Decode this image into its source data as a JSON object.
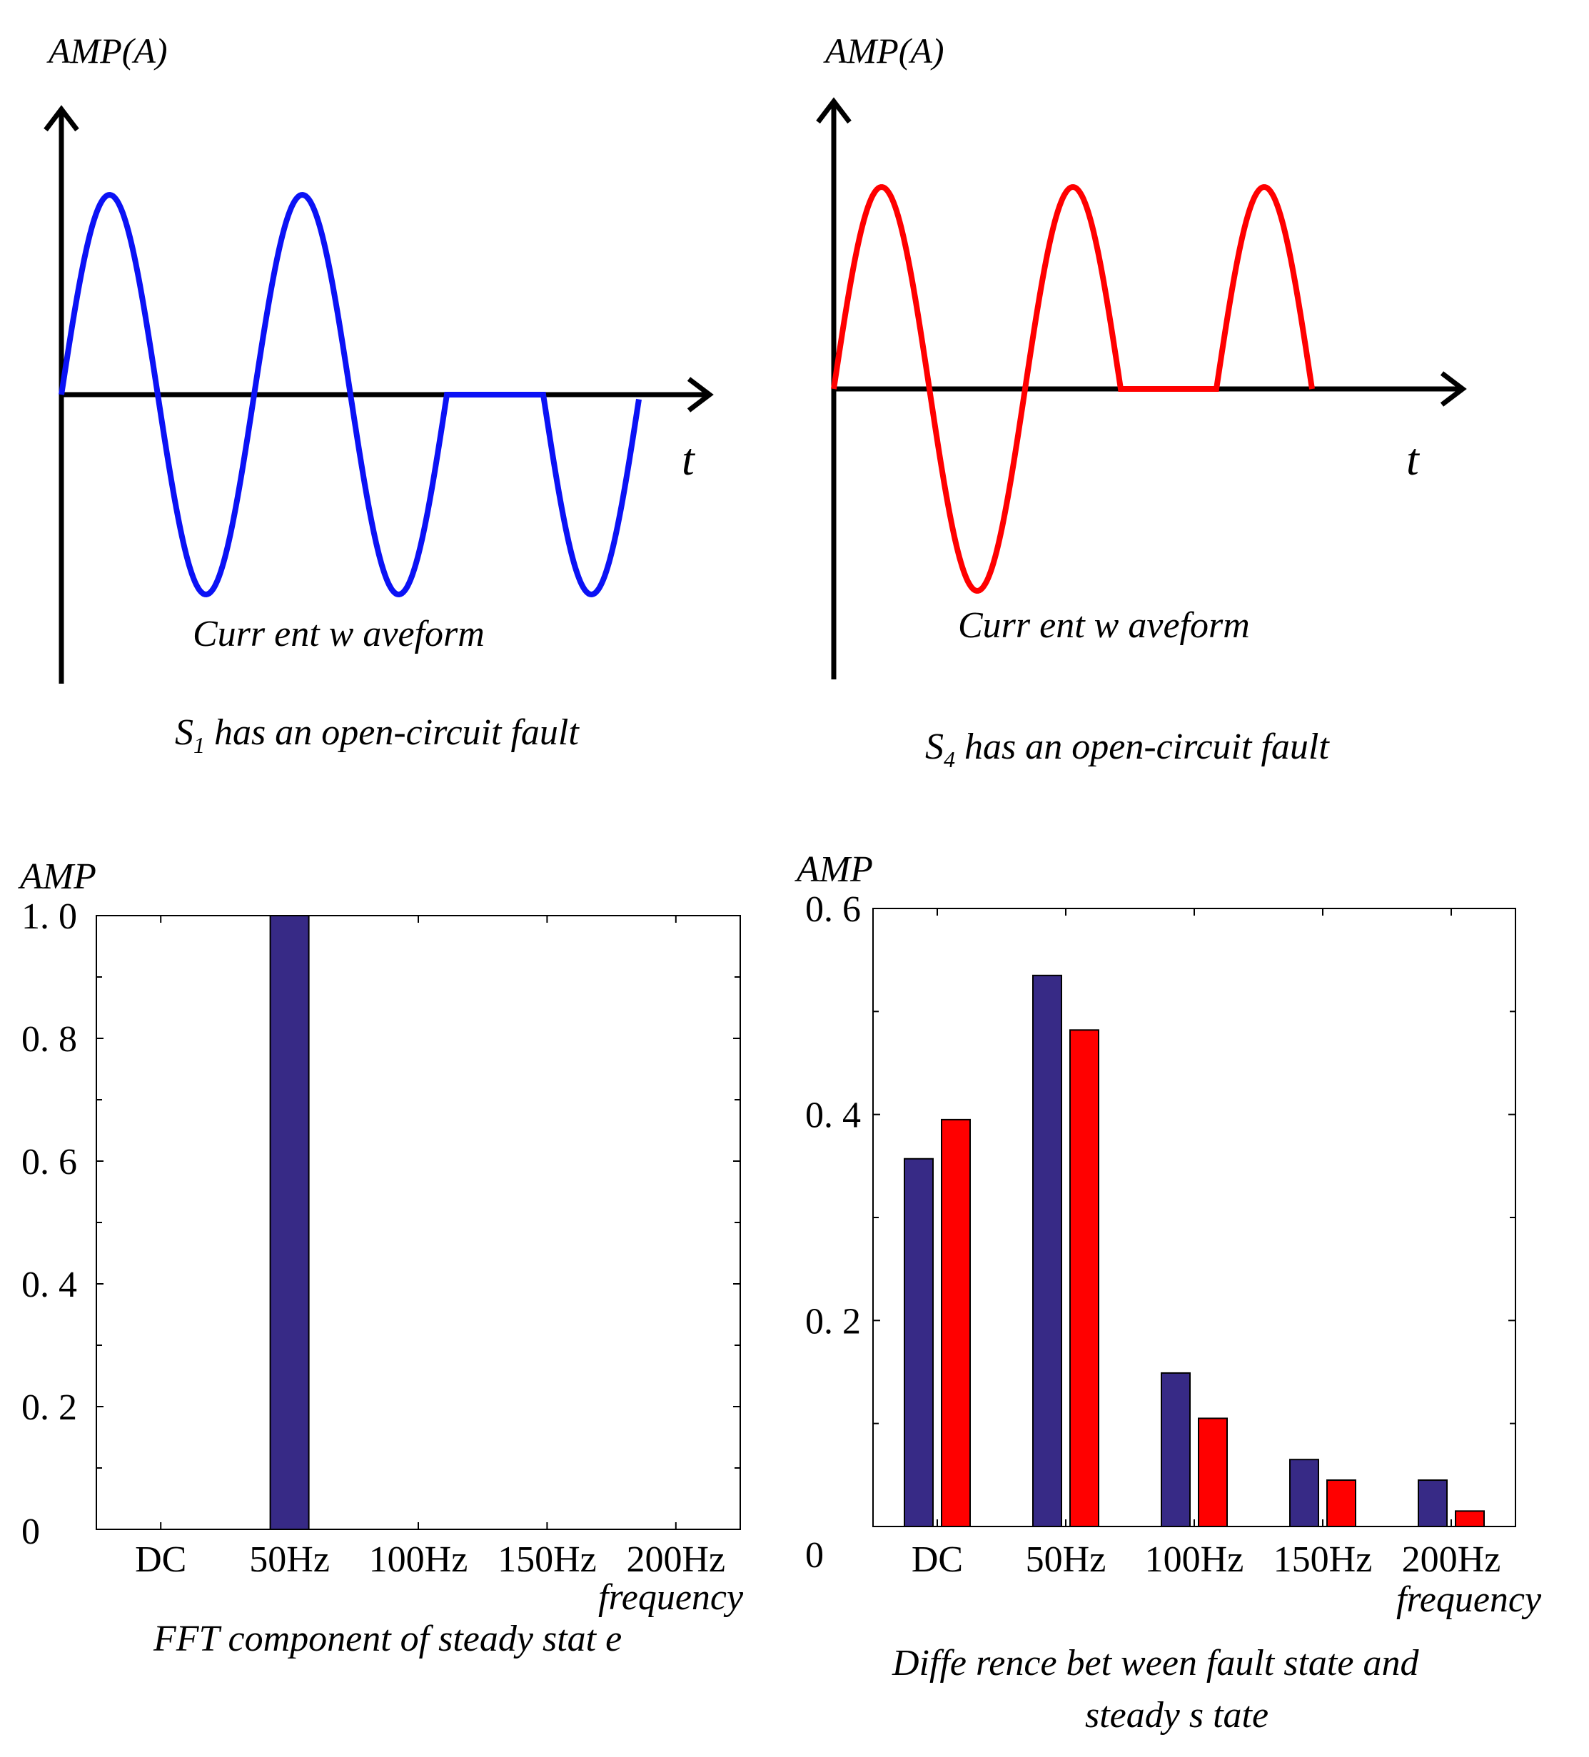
{
  "colors": {
    "blue_wave": "#0b12f5",
    "red_wave": "#ff0000",
    "bar_navy": "#372a86",
    "bar_red": "#ff0000",
    "axis": "#000000"
  },
  "panels": {
    "s1": {
      "y_axis_label": "AMP(A)",
      "t_label": "t",
      "wave_label": "Curr ent w aveform",
      "caption_prefix": "S",
      "caption_sub": "1",
      "caption_rest": " has an open-circuit fault"
    },
    "s4": {
      "y_axis_label": "AMP(A)",
      "t_label": "t",
      "wave_label": "Curr ent w aveform",
      "caption_prefix": "S",
      "caption_sub": "4",
      "caption_rest": " has an open-circuit fault"
    },
    "fft": {
      "amp_label": "AMP",
      "freq_label": "frequency",
      "caption": "FFT component of steady stat e"
    },
    "diff": {
      "amp_label": "AMP",
      "freq_label": "frequency",
      "caption_line1": "Diffe rence bet ween fault state and",
      "caption_line2": "steady s tate"
    }
  },
  "chart_data": [
    {
      "type": "line",
      "title": "S1 has an open-circuit fault",
      "ylabel": "AMP(A)",
      "xlabel": "t",
      "annotation": "Current waveform",
      "description_of_series": "sinusoid, 3 cycles; positive half of 3rd cycle missing (held at 0)",
      "series": [
        {
          "name": "current",
          "cycles": 3,
          "missing_half_cycle": "positive, cycle 3"
        }
      ]
    },
    {
      "type": "line",
      "title": "S4 has an open-circuit fault",
      "ylabel": "AMP(A)",
      "xlabel": "t",
      "annotation": "Current waveform",
      "description_of_series": "sinusoid, 2.5 cycles; negative half of 2nd cycle missing (held at 0)",
      "series": [
        {
          "name": "current",
          "cycles": 2.5,
          "missing_half_cycle": "negative, cycle 2"
        }
      ]
    },
    {
      "type": "bar",
      "title": "FFT component of steady state",
      "categories": [
        "DC",
        "50Hz",
        "100Hz",
        "150Hz",
        "200Hz"
      ],
      "values": [
        0,
        1.0,
        0,
        0,
        0
      ],
      "yticks": [
        "0",
        "0. 2",
        "0. 4",
        "0. 6",
        "0. 8",
        "1. 0"
      ],
      "ylim": [
        0,
        1.0
      ],
      "ylabel": "AMP",
      "xlabel": "frequency"
    },
    {
      "type": "bar",
      "title": "Difference between fault state and steady state",
      "categories": [
        "DC",
        "50Hz",
        "100Hz",
        "150Hz",
        "200Hz"
      ],
      "series": [
        {
          "name": "S1 fault",
          "color": "#372a86",
          "values": [
            0.357,
            0.535,
            0.149,
            0.065,
            0.045
          ]
        },
        {
          "name": "S4 fault",
          "color": "#ff0000",
          "values": [
            0.395,
            0.482,
            0.105,
            0.045,
            0.015
          ]
        }
      ],
      "yticks": [
        "0",
        "0. 2",
        "0. 4",
        "0. 6"
      ],
      "ylim": [
        0,
        0.6
      ],
      "ylabel": "AMP",
      "xlabel": "frequency"
    }
  ]
}
